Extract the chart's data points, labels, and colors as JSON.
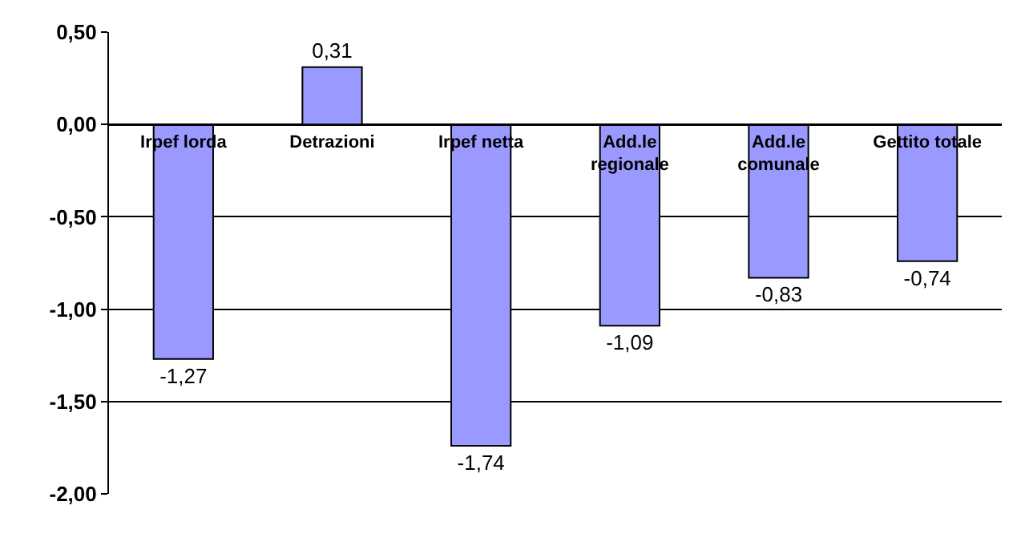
{
  "chart_data": {
    "type": "bar",
    "categories": [
      "Irpef lorda",
      "Detrazioni",
      "Irpef netta",
      "Add.le\nregionale",
      "Add.le\ncomunale",
      "Gettito totale"
    ],
    "values": [
      -1.27,
      0.31,
      -1.74,
      -1.09,
      -0.83,
      -0.74
    ],
    "value_labels": [
      "-1,27",
      "0,31",
      "-1,74",
      "-1,09",
      "-0,83",
      "-0,74"
    ],
    "color": "#9999ff",
    "ylim": [
      -2.0,
      0.5
    ],
    "yticks": [
      {
        "value": 0.5,
        "label": "0,50"
      },
      {
        "value": 0.0,
        "label": "0,00"
      },
      {
        "value": -0.5,
        "label": "-0,50"
      },
      {
        "value": -1.0,
        "label": "-1,00"
      },
      {
        "value": -1.5,
        "label": "-1,50"
      },
      {
        "value": -2.0,
        "label": "-2,00"
      }
    ],
    "grid": "y"
  }
}
